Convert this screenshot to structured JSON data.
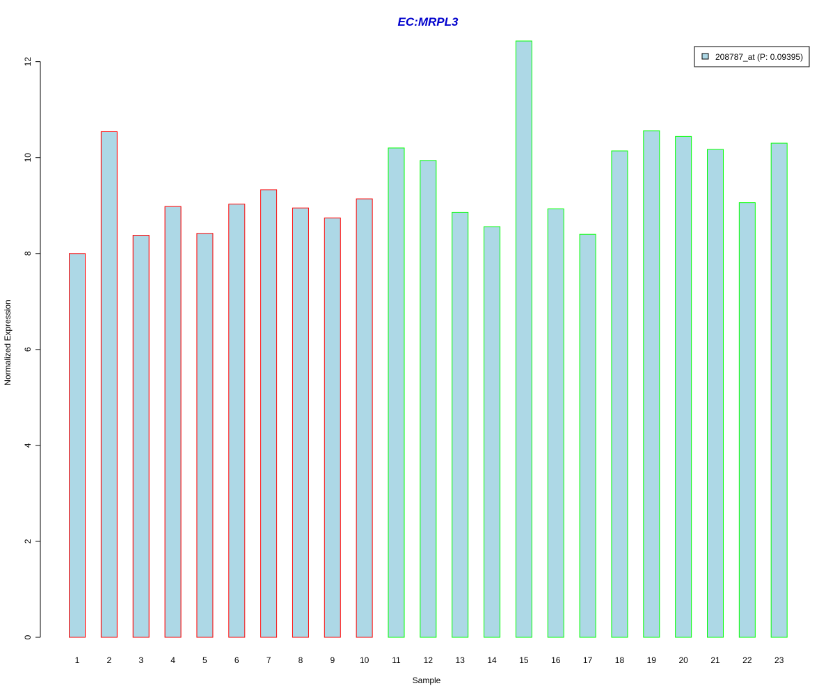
{
  "chart_data": {
    "type": "bar",
    "title": "EC:MRPL3",
    "xlabel": "Sample",
    "ylabel": "Normalized Expression",
    "categories": [
      "1",
      "2",
      "3",
      "4",
      "5",
      "6",
      "7",
      "8",
      "9",
      "10",
      "11",
      "12",
      "13",
      "14",
      "15",
      "16",
      "17",
      "18",
      "19",
      "20",
      "21",
      "22",
      "23"
    ],
    "series": [
      {
        "name": "208787_at (P: 0.09395)",
        "values": [
          8.0,
          10.54,
          8.38,
          8.98,
          8.42,
          9.03,
          9.33,
          8.95,
          8.74,
          9.14,
          10.2,
          9.94,
          8.86,
          8.56,
          12.43,
          8.93,
          8.4,
          10.14,
          10.56,
          10.44,
          10.17,
          9.06,
          10.3
        ]
      }
    ],
    "yticks": [
      0,
      2,
      4,
      6,
      8,
      10,
      12
    ],
    "ylim": [
      0,
      12.43
    ],
    "grid": false,
    "legend_position": "top-right",
    "colors": {
      "bar_fill": "#add8e6",
      "group1_border": "#ff0000",
      "group2_border": "#00ff00",
      "title": "#0000cd"
    },
    "group1_count": 10
  }
}
